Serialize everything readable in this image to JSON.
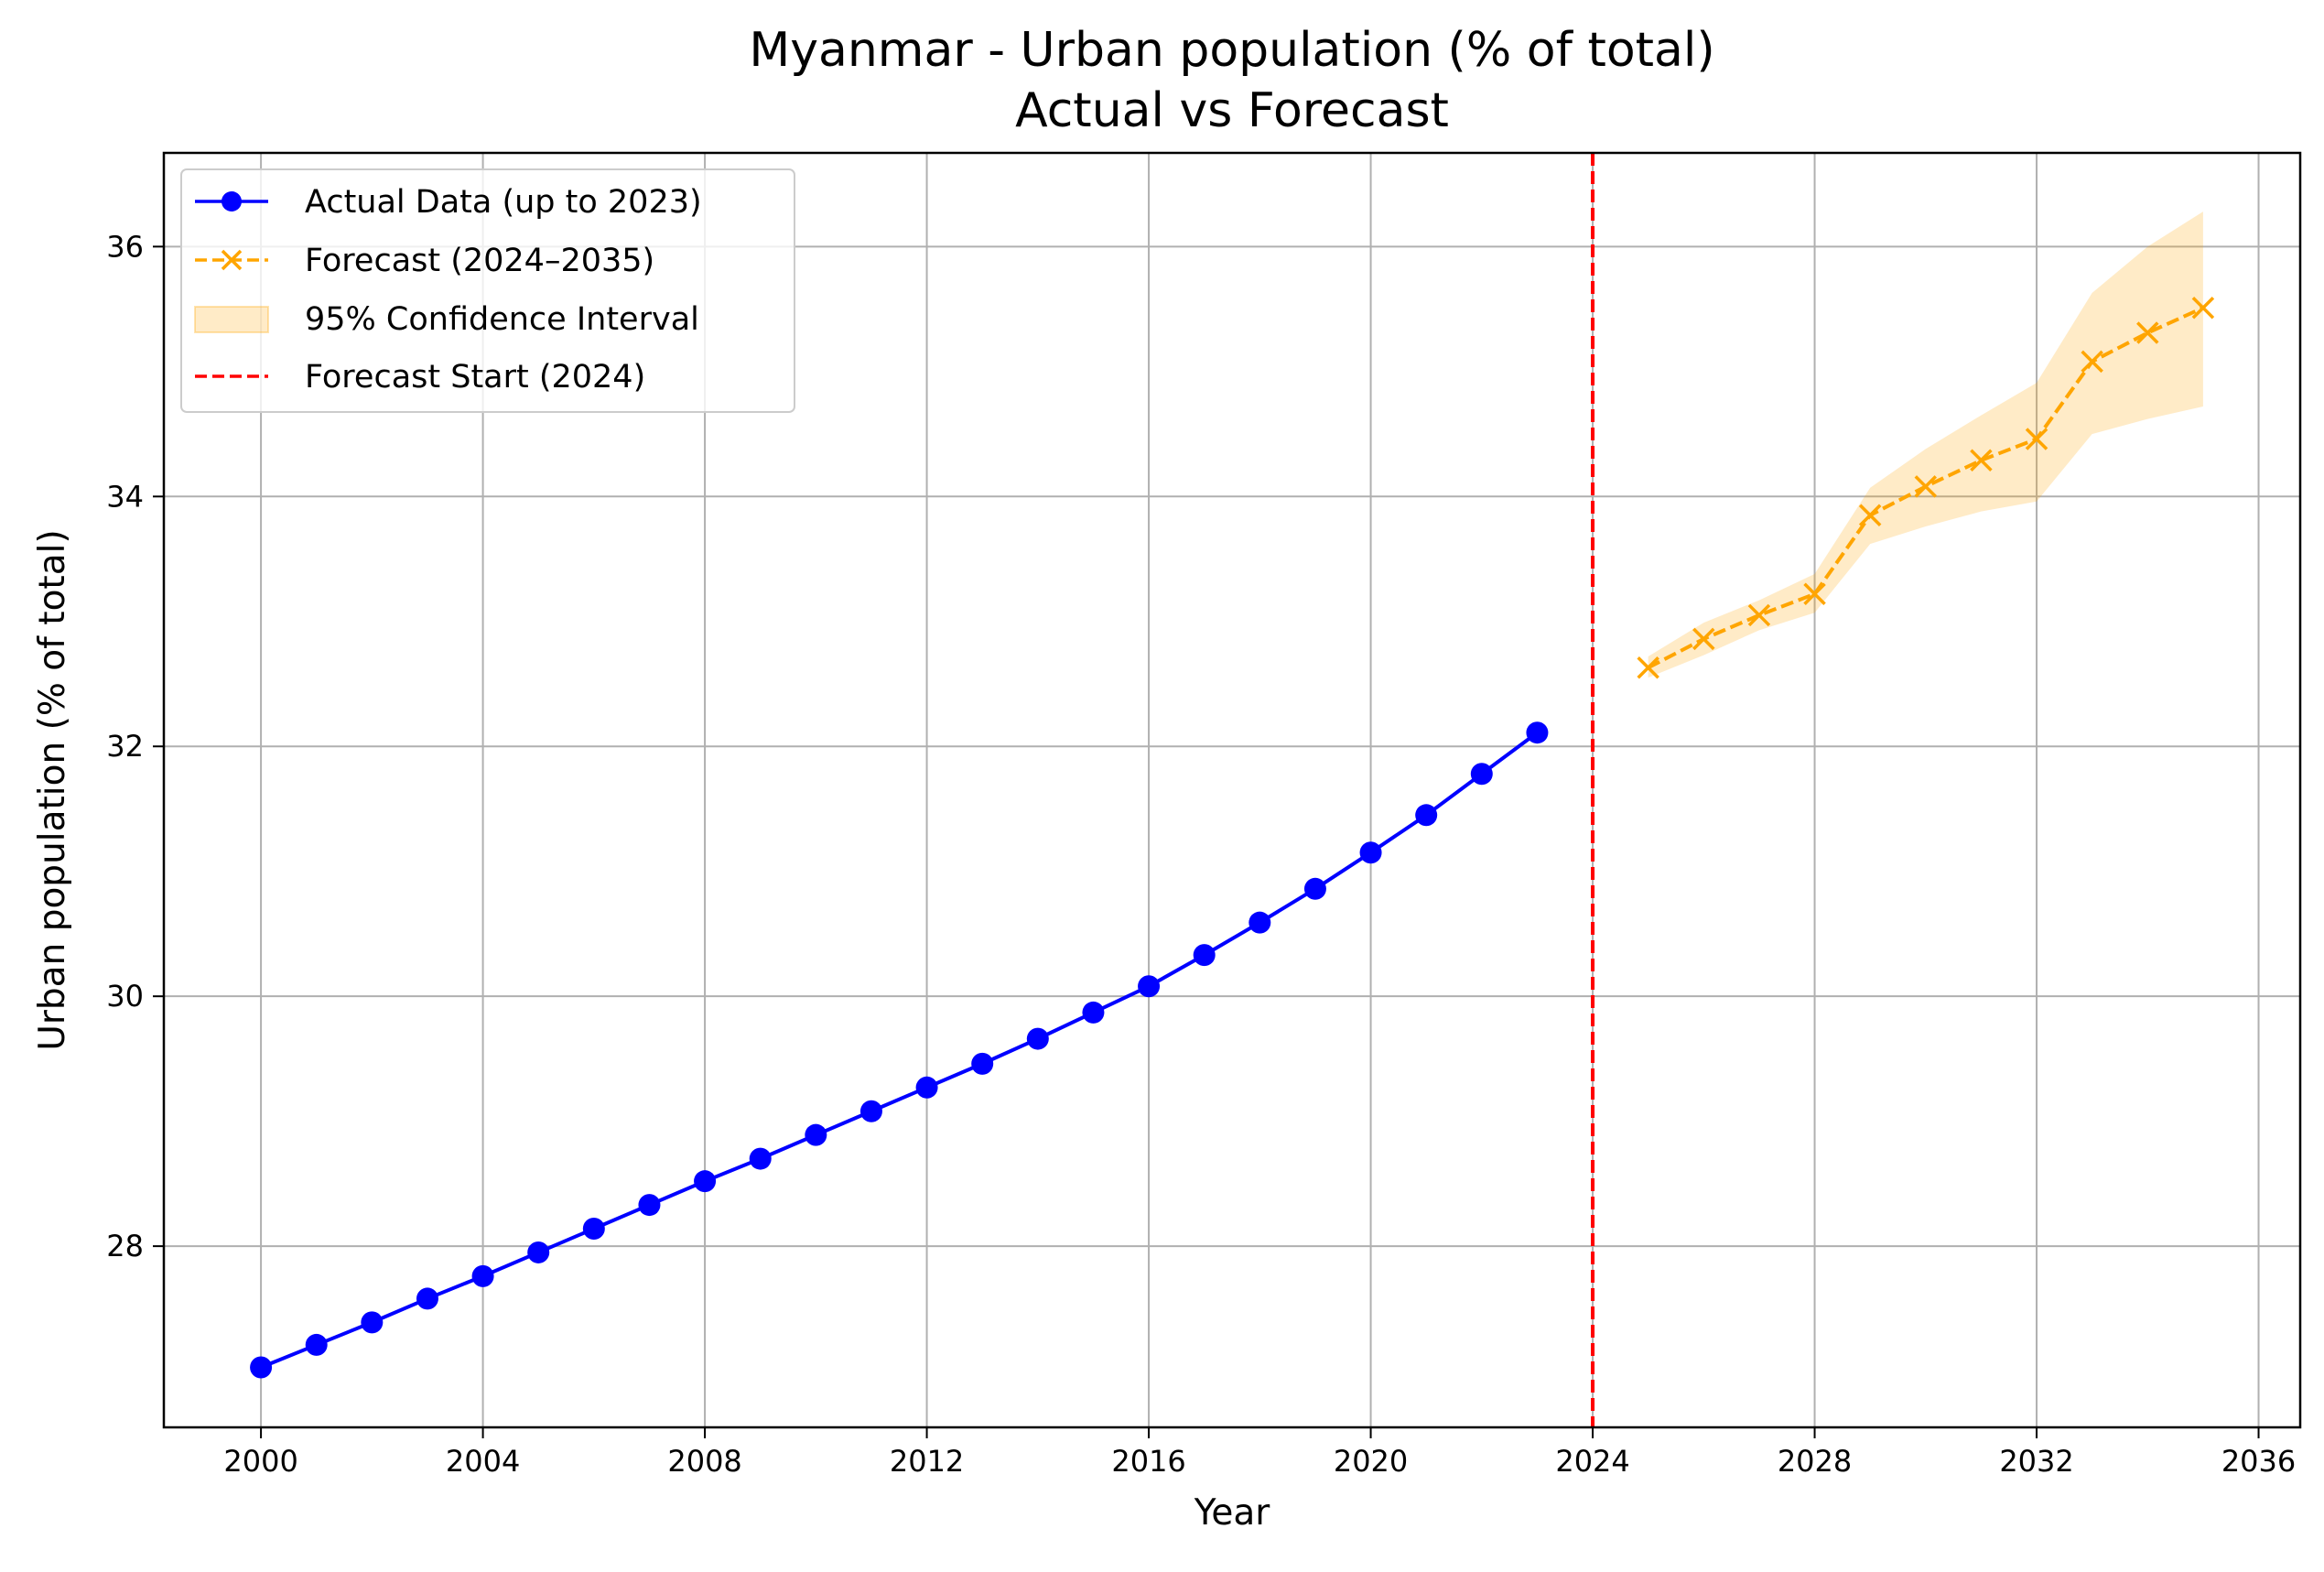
{
  "chart_data": {
    "type": "line",
    "title": "Myanmar - Urban population (% of total)",
    "subtitle": "Actual vs Forecast",
    "xlabel": "Year",
    "ylabel": "Urban population (% of total)",
    "xlim": [
      1998.25,
      2036.75
    ],
    "ylim": [
      26.55,
      36.75
    ],
    "x_ticks": [
      2000,
      2004,
      2008,
      2012,
      2016,
      2020,
      2024,
      2028,
      2032,
      2036
    ],
    "y_ticks": [
      28,
      30,
      32,
      34,
      36
    ],
    "grid": true,
    "legend_position": "upper-left",
    "series": [
      {
        "name": "Actual Data (up to 2023)",
        "color": "#0000ff",
        "style": "solid",
        "marker": "circle",
        "x": [
          2000,
          2001,
          2002,
          2003,
          2004,
          2005,
          2006,
          2007,
          2008,
          2009,
          2010,
          2011,
          2012,
          2013,
          2014,
          2015,
          2016,
          2017,
          2018,
          2019,
          2020,
          2021,
          2022,
          2023
        ],
        "y": [
          27.03,
          27.21,
          27.39,
          27.58,
          27.76,
          27.95,
          28.14,
          28.33,
          28.52,
          28.7,
          28.89,
          29.08,
          29.27,
          29.46,
          29.66,
          29.87,
          30.08,
          30.33,
          30.59,
          30.86,
          31.15,
          31.45,
          31.78,
          32.11
        ]
      },
      {
        "name": "Forecast (2024–2035)",
        "color": "#ffa500",
        "style": "dashed",
        "marker": "x",
        "x": [
          2025,
          2026,
          2027,
          2028,
          2029,
          2030,
          2031,
          2032,
          2033,
          2034,
          2035
        ],
        "y": [
          32.63,
          32.86,
          33.05,
          33.22,
          33.85,
          34.08,
          34.29,
          34.46,
          35.08,
          35.31,
          35.51
        ]
      }
    ],
    "confidence_interval": {
      "name": "95% Confidence Interval",
      "color": "#ffa500",
      "opacity": 0.22,
      "x": [
        2025,
        2026,
        2027,
        2028,
        2029,
        2030,
        2031,
        2032,
        2033,
        2034,
        2035
      ],
      "lower": [
        32.55,
        32.73,
        32.93,
        33.07,
        33.62,
        33.76,
        33.88,
        33.96,
        34.5,
        34.62,
        34.72
      ],
      "upper": [
        32.72,
        32.99,
        33.17,
        33.38,
        34.07,
        34.38,
        34.65,
        34.91,
        35.63,
        36.0,
        36.28
      ]
    },
    "forecast_start": {
      "name": "Forecast Start (2024)",
      "x": 2024,
      "color": "#ff0000",
      "style": "dashed"
    }
  }
}
